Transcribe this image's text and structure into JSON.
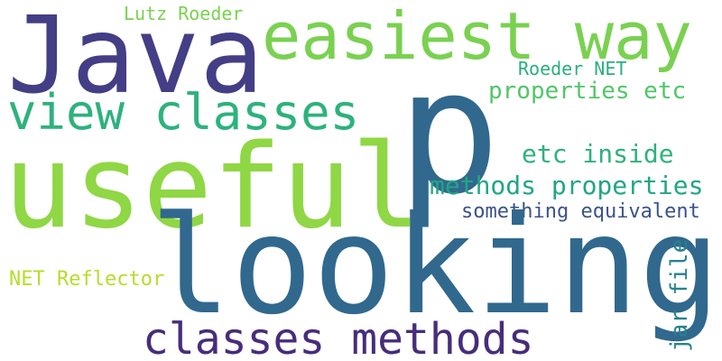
{
  "words": {
    "java": "Java",
    "easiest_way": "easiest way",
    "lutz_roeder": "Lutz Roeder",
    "p": "p",
    "roeder_net": "Roeder NET",
    "view_classes": "view classes",
    "properties_etc": "properties etc",
    "useful": "useful",
    "etc_inside": "etc inside",
    "methods_properties": "methods properties",
    "something_equivalent": "something equivalent",
    "looking": "looking",
    "jar_file": "jar file",
    "net_reflector": "NET Reflector",
    "classes_methods": "classes methods"
  },
  "colors": {
    "background": "#ffffff",
    "palette": [
      "#433e85",
      "#31688e",
      "#26828e",
      "#21a685",
      "#2db27d",
      "#52c569",
      "#7ad151",
      "#8fd744",
      "#b5de2b",
      "#472d7b",
      "#3b528b"
    ]
  }
}
